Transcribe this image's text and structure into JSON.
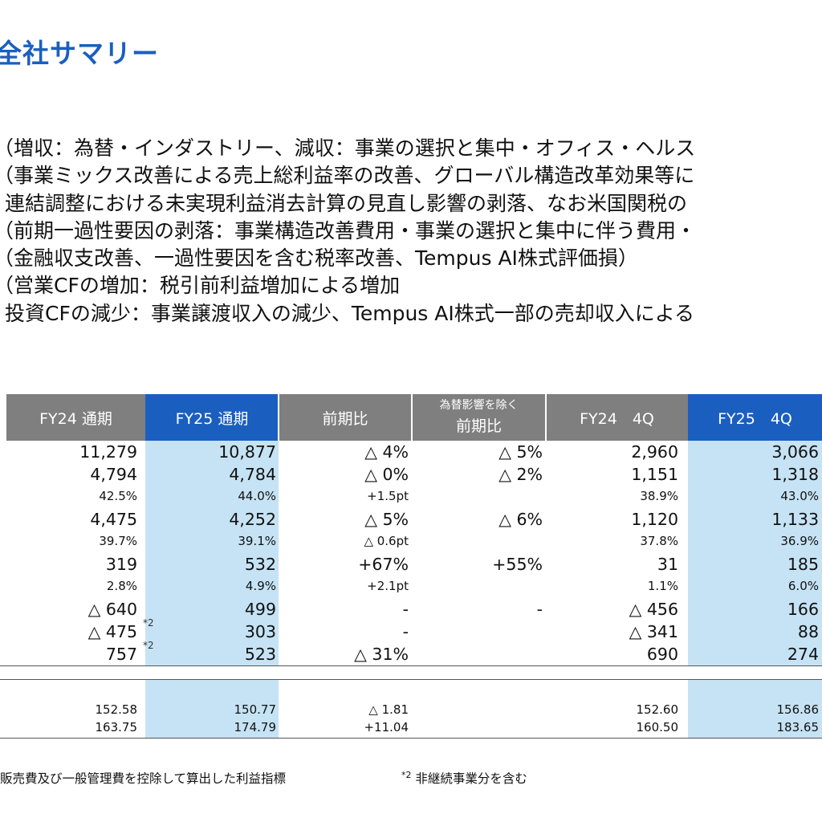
{
  "page": {
    "title": "全社サマリー"
  },
  "bullets": [
    "（増収：為替・インダストリー、減収：事業の選択と集中・オフィス・ヘルス",
    "（事業ミックス改善による売上総利益率の改善、グローバル構造改革効果等に",
    "連結調整における未実現利益消去計算の見直し影響の剥落、なお米国関税の",
    "（前期一過性要因の剥落：事業構造改善費用・事業の選択と集中に伴う費用・",
    "（金融収支改善、一過性要因を含む税率改善、Tempus AI株式評価損）",
    "（営業CFの増加：税引前利益増加による増加",
    "投資CFの減少：事業譲渡収入の減少、Tempus AI株式一部の売却収入による"
  ],
  "table": {
    "headers": {
      "fy24_full": "FY24 通期",
      "fy25_full": "FY25 通期",
      "yoy": "前期比",
      "fx_small": "為替影響を除く",
      "fx_large": "前期比",
      "fy24_q4": "FY24　4Q",
      "fy25_q4": "FY25　4Q"
    },
    "rows": [
      {
        "size": "big",
        "c1": "11,279",
        "c2": "10,877",
        "c3": "△ 4%",
        "c4": "△ 5%",
        "c5": "2,960",
        "c6": "3,066"
      },
      {
        "size": "big",
        "c1": "4,794",
        "c2": "4,784",
        "c3": "△ 0%",
        "c4": "△ 2%",
        "c5": "1,151",
        "c6": "1,318"
      },
      {
        "size": "small",
        "c1": "42.5%",
        "c2": "44.0%",
        "c3": "+1.5pt",
        "c4": "",
        "c5": "38.9%",
        "c6": "43.0%"
      },
      {
        "size": "big",
        "c1": "4,475",
        "c2": "4,252",
        "c3": "△ 5%",
        "c4": "△ 6%",
        "c5": "1,120",
        "c6": "1,133"
      },
      {
        "size": "small",
        "c1": "39.7%",
        "c2": "39.1%",
        "c3": "△ 0.6pt",
        "c4": "",
        "c5": "37.8%",
        "c6": "36.9%"
      },
      {
        "size": "big",
        "c1": "319",
        "c2": "532",
        "c3": "+67%",
        "c4": "+55%",
        "c5": "31",
        "c6": "185"
      },
      {
        "size": "small",
        "c1": "2.8%",
        "c2": "4.9%",
        "c3": "+2.1pt",
        "c4": "",
        "c5": "1.1%",
        "c6": "6.0%"
      },
      {
        "size": "big",
        "c1": "△ 640",
        "c2": "499",
        "c3": "-",
        "c4": "-",
        "c5": "△ 456",
        "c6": "166"
      },
      {
        "size": "big",
        "c1": "△ 475",
        "c2": "303",
        "c3": "-",
        "c4": "",
        "c5": "△ 341",
        "c6": "88",
        "sup": "*2"
      },
      {
        "size": "big",
        "c1": "757",
        "c2": "523",
        "c3": "△ 31%",
        "c4": "",
        "c5": "690",
        "c6": "274",
        "sup": "*2"
      }
    ],
    "fx_rows": [
      {
        "c1": "152.58",
        "c2": "150.77",
        "c3": "△ 1.81",
        "c5": "152.60",
        "c6": "156.86"
      },
      {
        "c1": "163.75",
        "c2": "174.79",
        "c3": "+11.04",
        "c5": "160.50",
        "c6": "183.65"
      }
    ]
  },
  "footnotes": {
    "note1": "販売費及び一般管理費を控除して算出した利益指標",
    "note2_mark": "*2",
    "note2": " 非継続事業分を含む"
  },
  "colors": {
    "title": "#1a5fc0",
    "header_gray": "#7f7f7f",
    "header_blue": "#1a5fc0",
    "band": "#c5e3f4"
  }
}
